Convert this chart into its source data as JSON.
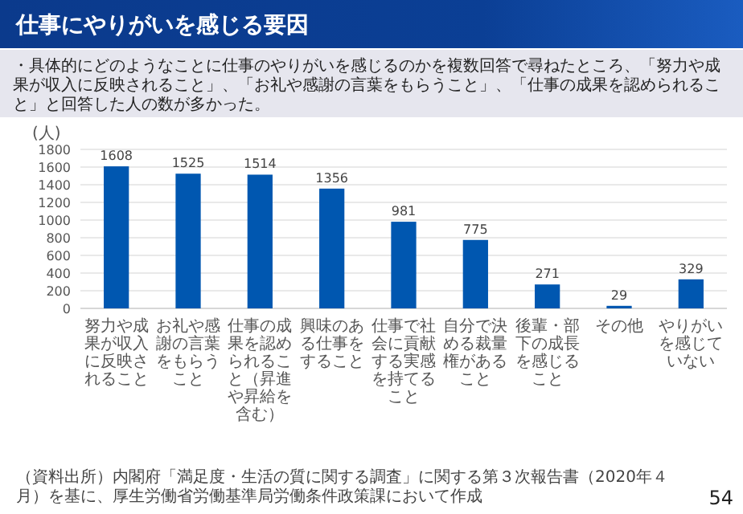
{
  "chart_data": {
    "type": "bar",
    "title": "仕事にやりがいを感じる要因",
    "subtitle": "・具体的にどのようなことに仕事のやりがいを感じるのかを複数回答で尋ねたところ、「努力や成果が収入に反映されること」、「お礼や感謝の言葉をもらうこと」、「仕事の成果を認められること」と回答した人の数が多かった。",
    "ylabel": "(人)",
    "categories": [
      "努力や成果が収入に反映されること",
      "お礼や感謝の言葉をもらうこと",
      "仕事の成果を認められること（昇進や昇給を含む）",
      "興味のある仕事をすること",
      "仕事で社会に貢献する実感を持てること",
      "自分で決める裁量権があること",
      "後輩・部下の成長を感じること",
      "その他",
      "やりがいを感じていない"
    ],
    "values": [
      1608,
      1525,
      1514,
      1356,
      981,
      775,
      271,
      29,
      329
    ],
    "color": "#0057b0",
    "ylim": [
      0,
      1800
    ],
    "yticks": [
      0,
      200,
      400,
      600,
      800,
      1000,
      1200,
      1400,
      1600,
      1800
    ],
    "grid": "y",
    "data_labels": true,
    "annotations": [
      "（資料出所）内閣府「満足度・生活の質に関する調査」に関する第３次報告書（2020年４月）を基に、厚生労働省労働基準局労働条件政策課において作成",
      "54"
    ]
  }
}
